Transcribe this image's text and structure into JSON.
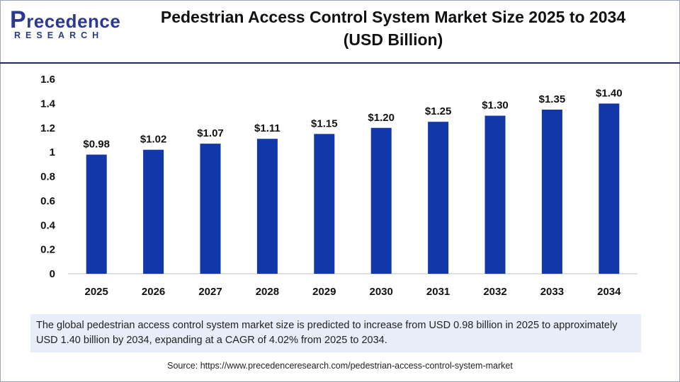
{
  "brand": {
    "logo_top": "recedence",
    "logo_p": "P",
    "logo_bottom": "RESEARCH"
  },
  "title_line1": "Pedestrian Access Control System Market Size 2025 to 2034",
  "title_line2": "(USD Billion)",
  "chart_data": {
    "type": "bar",
    "categories": [
      "2025",
      "2026",
      "2027",
      "2028",
      "2029",
      "2030",
      "2031",
      "2032",
      "2033",
      "2034"
    ],
    "values": [
      0.98,
      1.02,
      1.07,
      1.11,
      1.15,
      1.2,
      1.25,
      1.3,
      1.35,
      1.4
    ],
    "data_labels": [
      "$0.98",
      "$1.02",
      "$1.07",
      "$1.11",
      "$1.15",
      "$1.20",
      "$1.25",
      "$1.30",
      "$1.35",
      "$1.40"
    ],
    "yticks": [
      "0",
      "0.2",
      "0.4",
      "0.6",
      "0.8",
      "1",
      "1.2",
      "1.4",
      "1.6"
    ],
    "ylim": [
      0,
      1.6
    ],
    "grid": false,
    "bar_color": "#1237a8"
  },
  "note": "The global pedestrian access control system market size is predicted to increase from USD 0.98 billion in 2025 to approximately USD 1.40 billion by 2034, expanding at a CAGR of 4.02% from 2025 to 2034.",
  "source": "Source: https://www.precedenceresearch.com/pedestrian-access-control-system-market"
}
